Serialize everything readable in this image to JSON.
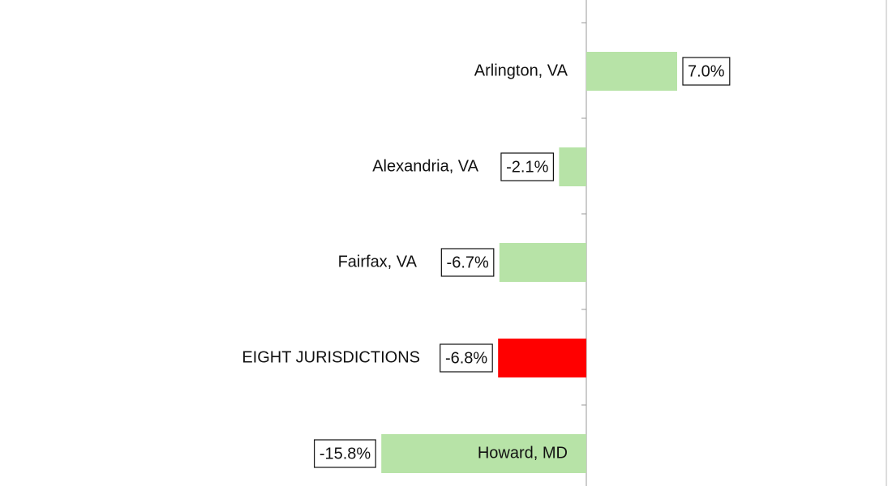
{
  "chart_data": {
    "type": "bar",
    "orientation": "horizontal",
    "categories": [
      "Arlington, VA",
      "Alexandria, VA",
      "Fairfax, VA",
      "EIGHT JURISDICTIONS",
      "Howard, MD"
    ],
    "values": [
      7.0,
      -2.1,
      -6.7,
      -6.8,
      -15.8
    ],
    "value_labels": [
      "7.0%",
      "-2.1%",
      "-6.7%",
      "-6.8%",
      "-15.8%"
    ],
    "colors": [
      "#b7e3a7",
      "#b7e3a7",
      "#b7e3a7",
      "#ff0000",
      "#b7e3a7"
    ]
  }
}
